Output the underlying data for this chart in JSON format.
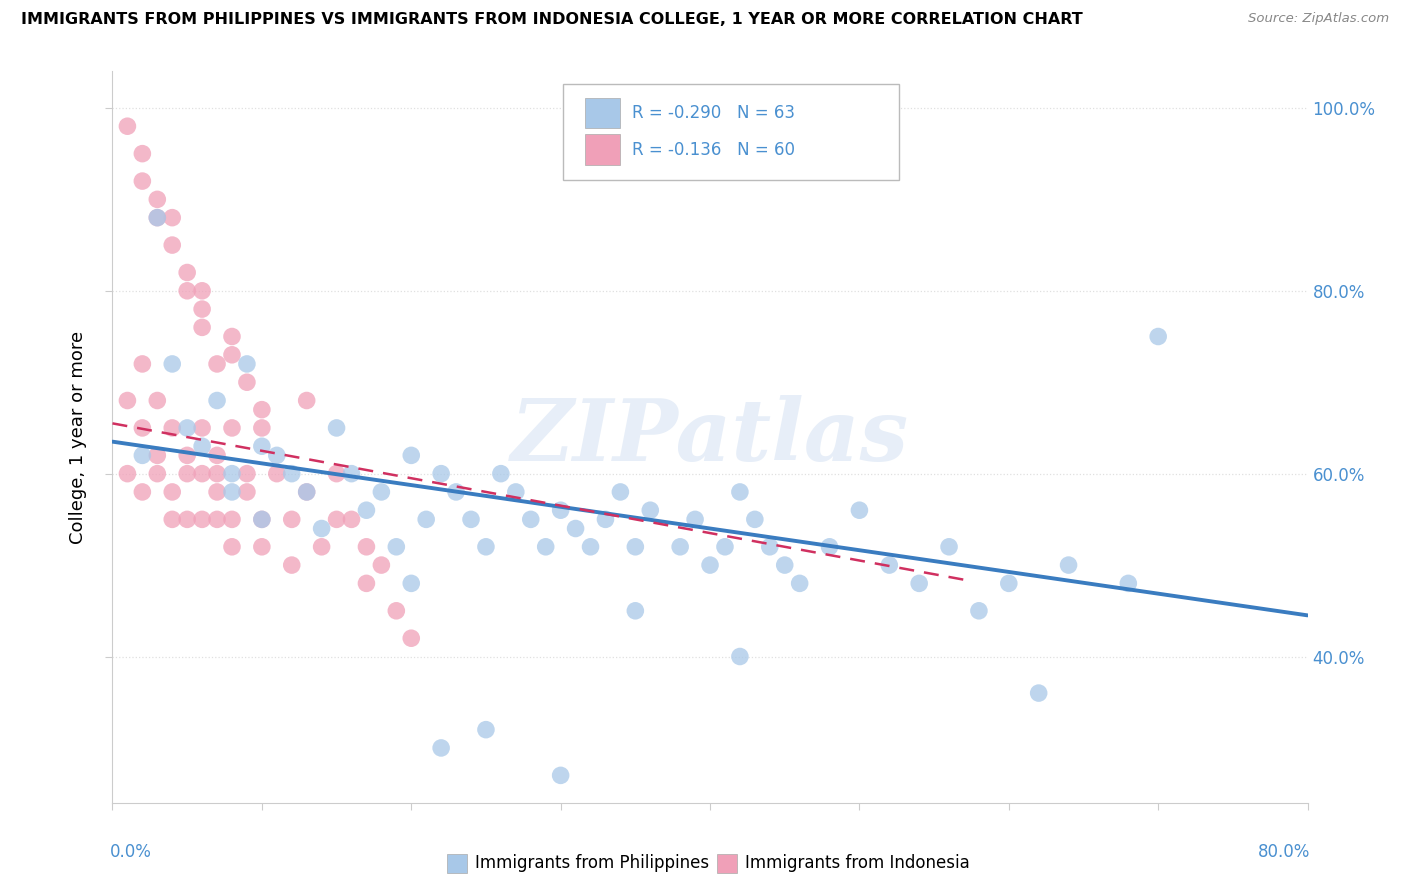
{
  "title": "IMMIGRANTS FROM PHILIPPINES VS IMMIGRANTS FROM INDONESIA COLLEGE, 1 YEAR OR MORE CORRELATION CHART",
  "source": "Source: ZipAtlas.com",
  "ylabel": "College, 1 year or more",
  "legend_philippines": {
    "R": -0.29,
    "N": 63,
    "label": "Immigrants from Philippines"
  },
  "legend_indonesia": {
    "R": -0.136,
    "N": 60,
    "label": "Immigrants from Indonesia"
  },
  "xlim": [
    0.0,
    0.8
  ],
  "ylim": [
    0.24,
    1.04
  ],
  "yticks": [
    0.4,
    0.6,
    0.8,
    1.0
  ],
  "color_philippines": "#a8c8e8",
  "color_indonesia": "#f0a0b8",
  "color_line_philippines": "#3a7cc0",
  "color_line_indonesia": "#d03060",
  "background_color": "#ffffff",
  "grid_color": "#e0e0e0",
  "grid_linestyle": "dotted",
  "watermark": "ZIPatlas",
  "philippines_x": [
    0.02,
    0.03,
    0.04,
    0.05,
    0.06,
    0.07,
    0.08,
    0.08,
    0.09,
    0.1,
    0.1,
    0.11,
    0.12,
    0.13,
    0.14,
    0.15,
    0.16,
    0.17,
    0.18,
    0.19,
    0.2,
    0.21,
    0.22,
    0.23,
    0.24,
    0.25,
    0.26,
    0.27,
    0.28,
    0.29,
    0.3,
    0.31,
    0.32,
    0.33,
    0.34,
    0.35,
    0.36,
    0.38,
    0.39,
    0.4,
    0.41,
    0.42,
    0.43,
    0.44,
    0.45,
    0.46,
    0.48,
    0.5,
    0.52,
    0.54,
    0.56,
    0.58,
    0.6,
    0.62,
    0.64,
    0.68,
    0.7,
    0.35,
    0.42,
    0.2,
    0.3,
    0.25,
    0.22
  ],
  "philippines_y": [
    0.62,
    0.88,
    0.72,
    0.65,
    0.63,
    0.68,
    0.6,
    0.58,
    0.72,
    0.63,
    0.55,
    0.62,
    0.6,
    0.58,
    0.54,
    0.65,
    0.6,
    0.56,
    0.58,
    0.52,
    0.62,
    0.55,
    0.6,
    0.58,
    0.55,
    0.52,
    0.6,
    0.58,
    0.55,
    0.52,
    0.56,
    0.54,
    0.52,
    0.55,
    0.58,
    0.52,
    0.56,
    0.52,
    0.55,
    0.5,
    0.52,
    0.58,
    0.55,
    0.52,
    0.5,
    0.48,
    0.52,
    0.56,
    0.5,
    0.48,
    0.52,
    0.45,
    0.48,
    0.36,
    0.5,
    0.48,
    0.75,
    0.45,
    0.4,
    0.48,
    0.27,
    0.32,
    0.3
  ],
  "indonesia_x": [
    0.01,
    0.01,
    0.02,
    0.02,
    0.02,
    0.03,
    0.03,
    0.03,
    0.04,
    0.04,
    0.04,
    0.05,
    0.05,
    0.05,
    0.06,
    0.06,
    0.06,
    0.07,
    0.07,
    0.07,
    0.07,
    0.08,
    0.08,
    0.08,
    0.09,
    0.09,
    0.1,
    0.1,
    0.1,
    0.11,
    0.12,
    0.12,
    0.13,
    0.14,
    0.15,
    0.15,
    0.16,
    0.17,
    0.17,
    0.18,
    0.19,
    0.2,
    0.13,
    0.08,
    0.06,
    0.05,
    0.04,
    0.03,
    0.02,
    0.01,
    0.09,
    0.07,
    0.06,
    0.05,
    0.04,
    0.03,
    0.02,
    0.1,
    0.08,
    0.06
  ],
  "indonesia_y": [
    0.68,
    0.6,
    0.72,
    0.65,
    0.58,
    0.62,
    0.68,
    0.6,
    0.55,
    0.65,
    0.58,
    0.62,
    0.6,
    0.55,
    0.65,
    0.6,
    0.55,
    0.58,
    0.62,
    0.55,
    0.6,
    0.65,
    0.55,
    0.52,
    0.6,
    0.58,
    0.52,
    0.55,
    0.65,
    0.6,
    0.55,
    0.5,
    0.58,
    0.52,
    0.6,
    0.55,
    0.55,
    0.48,
    0.52,
    0.5,
    0.45,
    0.42,
    0.68,
    0.75,
    0.78,
    0.82,
    0.88,
    0.9,
    0.95,
    0.98,
    0.7,
    0.72,
    0.76,
    0.8,
    0.85,
    0.88,
    0.92,
    0.67,
    0.73,
    0.8
  ]
}
